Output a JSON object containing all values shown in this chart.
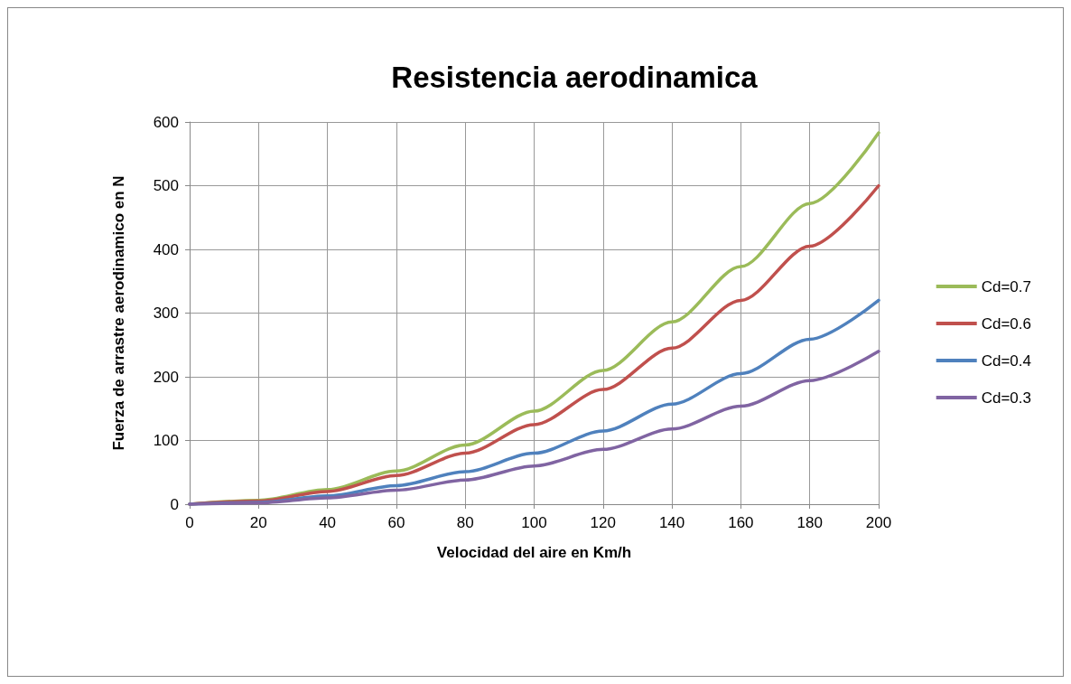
{
  "chart_data": {
    "type": "line",
    "title": "Resistencia aerodinamica",
    "xlabel": "Velocidad del aire en Km/h",
    "ylabel": "Fuerza de arrastre aerodinamico en N",
    "x": [
      0,
      20,
      40,
      60,
      80,
      100,
      120,
      140,
      160,
      180,
      200
    ],
    "series": [
      {
        "name": "Cd=0.7",
        "color": "#9bbb59",
        "values": [
          0,
          6,
          23,
          52,
          93,
          146,
          210,
          286,
          373,
          472,
          583
        ]
      },
      {
        "name": "Cd=0.6",
        "color": "#c0504d",
        "values": [
          0,
          5,
          20,
          45,
          80,
          125,
          180,
          245,
          320,
          405,
          500
        ]
      },
      {
        "name": "Cd=0.4",
        "color": "#4f81bd",
        "values": [
          0,
          3,
          13,
          29,
          51,
          80,
          115,
          157,
          205,
          259,
          320
        ]
      },
      {
        "name": "Cd=0.3",
        "color": "#8064a2",
        "values": [
          0,
          2,
          10,
          22,
          38,
          60,
          86,
          118,
          154,
          194,
          240
        ]
      }
    ],
    "xlim": [
      0,
      200
    ],
    "xticks": [
      0,
      20,
      40,
      60,
      80,
      100,
      120,
      140,
      160,
      180,
      200
    ],
    "ylim": [
      0,
      600
    ],
    "yticks": [
      0,
      100,
      200,
      300,
      400,
      500,
      600
    ],
    "grid": true,
    "legend": "right",
    "marker": "none",
    "line_style": "solid"
  }
}
